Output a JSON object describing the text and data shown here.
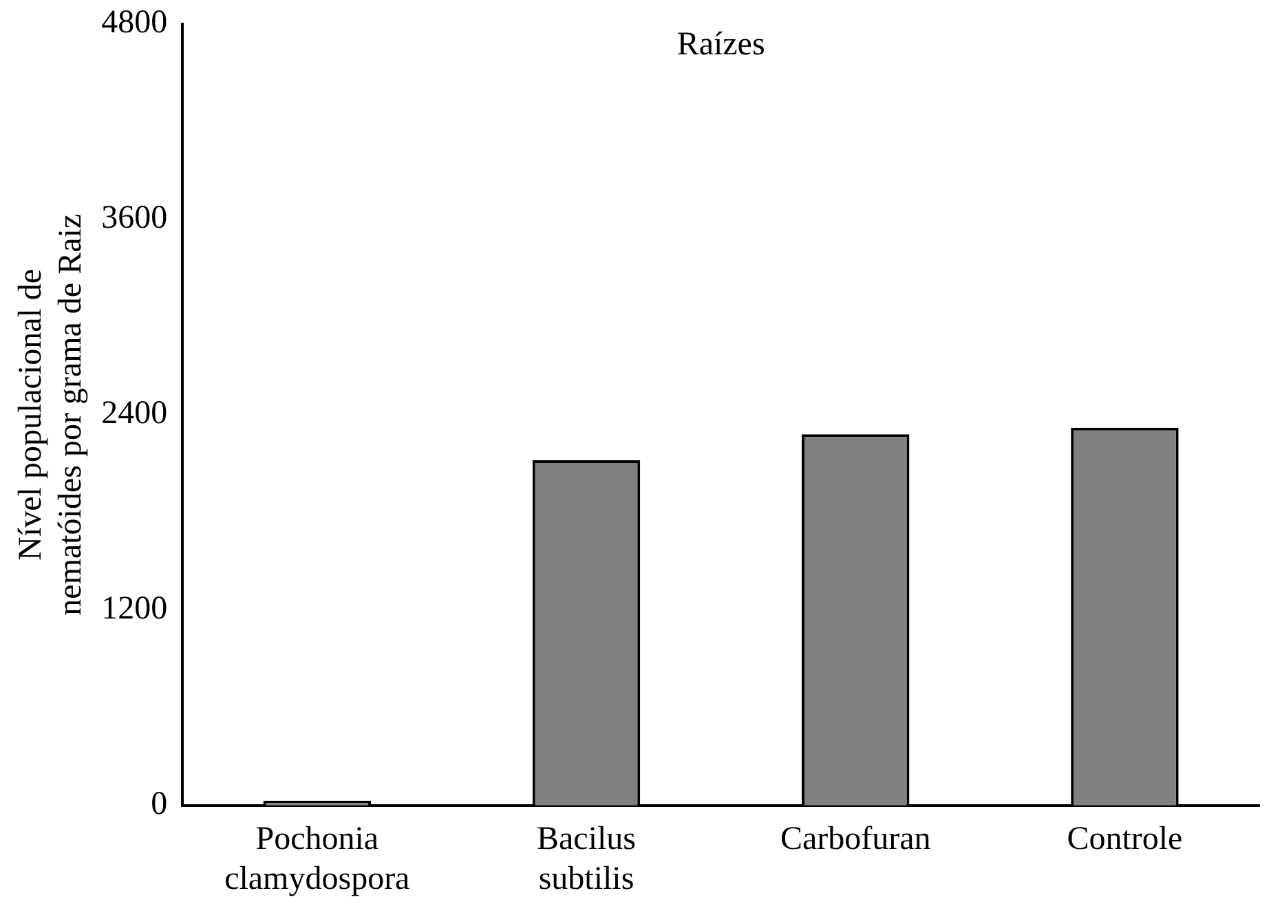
{
  "chart_data": {
    "type": "bar",
    "title": "Raízes",
    "ylabel": "Nível populacional de nematóides  por grama de Raiz",
    "categories": [
      "Pochonia clamydospora",
      "Bacilus subtilis",
      "Carbofuran",
      "Controle"
    ],
    "values": [
      30,
      2120,
      2280,
      2320
    ],
    "color": "#808080",
    "ylim": [
      0,
      4800
    ],
    "yticks": [
      0,
      1200,
      2400,
      3600,
      4800
    ],
    "grid": false,
    "legend": false
  }
}
